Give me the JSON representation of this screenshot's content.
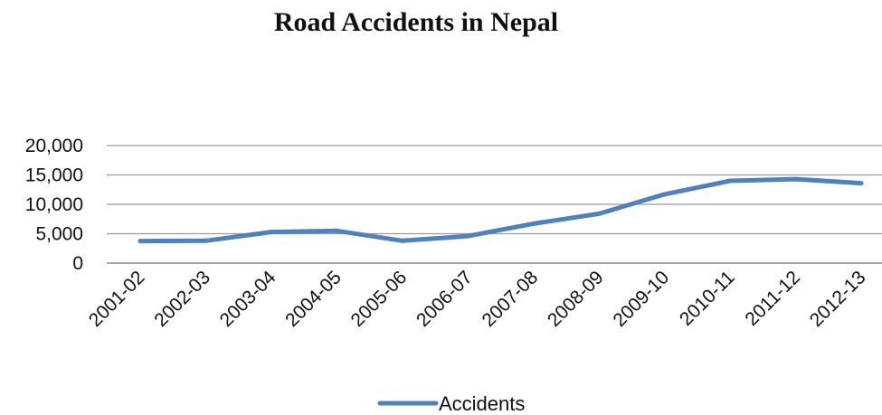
{
  "chart_data": {
    "type": "line",
    "title": "Road Accidents in Nepal",
    "xlabel": "",
    "ylabel": "",
    "categories": [
      "2001-02",
      "2002-03",
      "2003-04",
      "2004-05",
      "2005-06",
      "2006-07",
      "2007-08",
      "2008-09",
      "2009-10",
      "2010-11",
      "2011-12",
      "2012-13"
    ],
    "y_ticks": [
      "0",
      "5,000",
      "10,000",
      "15,000",
      "20,000"
    ],
    "ylim": [
      0,
      20000
    ],
    "series": [
      {
        "name": "Accidents",
        "color": "#4F81BD",
        "values": [
          3750,
          3800,
          5300,
          5500,
          3800,
          4600,
          6700,
          8400,
          11700,
          14000,
          14300,
          13600
        ]
      }
    ],
    "grid": true,
    "legend_position": "bottom"
  }
}
